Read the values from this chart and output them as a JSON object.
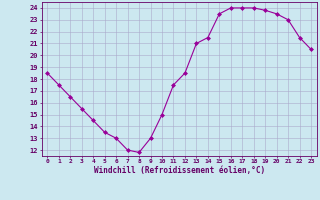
{
  "x": [
    0,
    1,
    2,
    3,
    4,
    5,
    6,
    7,
    8,
    9,
    10,
    11,
    12,
    13,
    14,
    15,
    16,
    17,
    18,
    19,
    20,
    21,
    22,
    23
  ],
  "y": [
    18.5,
    17.5,
    16.5,
    15.5,
    14.5,
    13.5,
    13.0,
    12.0,
    11.8,
    13.0,
    15.0,
    17.5,
    18.5,
    21.0,
    21.5,
    23.5,
    24.0,
    24.0,
    24.0,
    23.8,
    23.5,
    23.0,
    21.5,
    20.5
  ],
  "line_color": "#990099",
  "marker": "D",
  "marker_size": 2,
  "bg_color": "#cce8f0",
  "grid_color": "#aaaacc",
  "xlabel": "Windchill (Refroidissement éolien,°C)",
  "ylabel_ticks": [
    12,
    13,
    14,
    15,
    16,
    17,
    18,
    19,
    20,
    21,
    22,
    23,
    24
  ],
  "xtick_labels": [
    "0",
    "1",
    "2",
    "3",
    "4",
    "5",
    "6",
    "7",
    "8",
    "9",
    "10",
    "11",
    "12",
    "13",
    "14",
    "15",
    "16",
    "17",
    "18",
    "19",
    "20",
    "21",
    "22",
    "23"
  ],
  "ylim": [
    11.5,
    24.5
  ],
  "xlim": [
    -0.5,
    23.5
  ],
  "label_color": "#660066",
  "font_family": "monospace"
}
